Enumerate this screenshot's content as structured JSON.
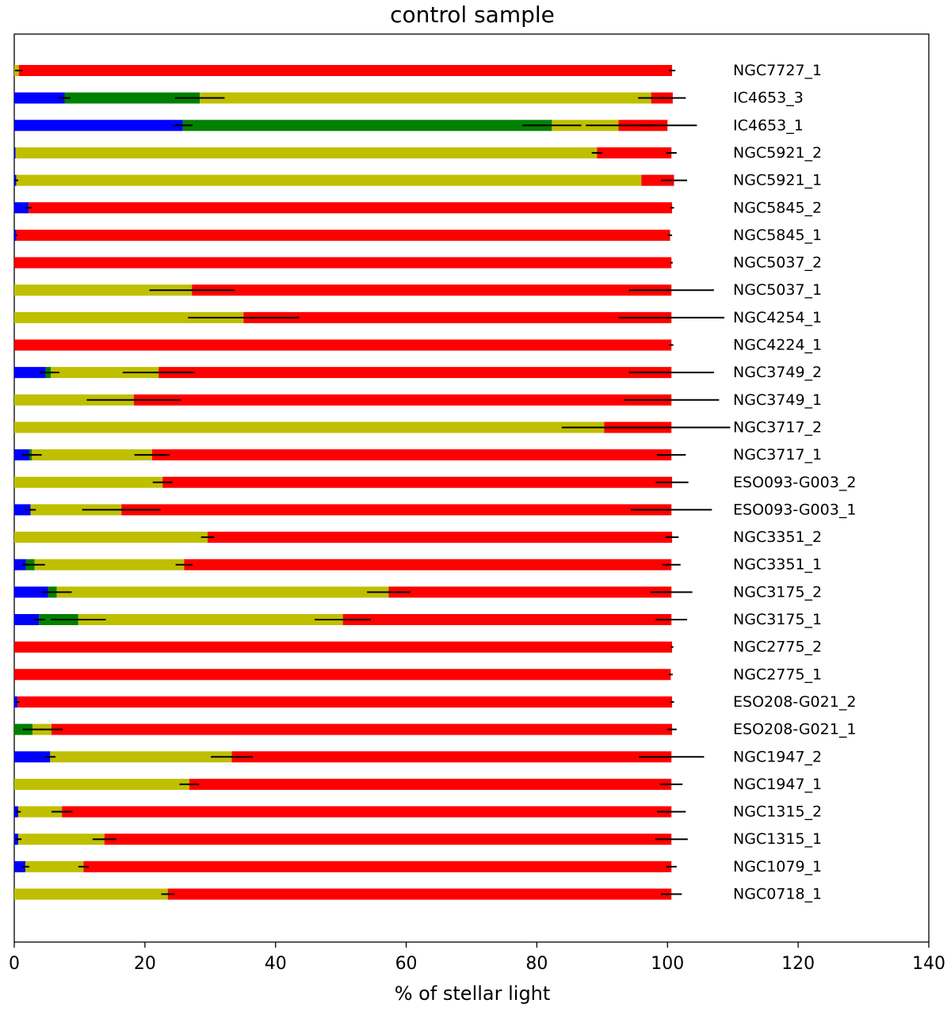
{
  "chart_data": {
    "type": "bar",
    "orientation": "horizontal",
    "stacked": true,
    "title": "control sample",
    "xlabel": "% of stellar light",
    "ylabel": "",
    "xlim": [
      0,
      140
    ],
    "x_ticks": [
      "0",
      "20",
      "40",
      "60",
      "80",
      "100",
      "120",
      "140"
    ],
    "grid": false,
    "legend": "none",
    "categories": [
      "NGC7727_1",
      "IC4653_3",
      "IC4653_1",
      "NGC5921_2",
      "NGC5921_1",
      "NGC5845_2",
      "NGC5845_1",
      "NGC5037_2",
      "NGC5037_1",
      "NGC4254_1",
      "NGC4224_1",
      "NGC3749_2",
      "NGC3749_1",
      "NGC3717_2",
      "NGC3717_1",
      "ESO093-G003_2",
      "ESO093-G003_1",
      "NGC3351_2",
      "NGC3351_1",
      "NGC3175_2",
      "NGC3175_1",
      "NGC2775_2",
      "NGC2775_1",
      "ESO208-G021_2",
      "ESO208-G021_1",
      "NGC1947_2",
      "NGC1947_1",
      "NGC1315_2",
      "NGC1315_1",
      "NGC1079_1",
      "NGC0718_1"
    ],
    "series": [
      {
        "color": "#0000ff",
        "values": [
          0,
          7.7,
          25.8,
          0.2,
          0.3,
          2.2,
          0.3,
          0,
          0,
          0,
          0,
          4.8,
          0,
          0,
          2.3,
          0,
          2.5,
          0,
          1.8,
          5.2,
          3.8,
          0,
          0,
          0.5,
          0,
          5.5,
          0,
          0.6,
          0.6,
          1.7,
          0
        ],
        "errors": [
          0,
          0.9,
          1.5,
          0,
          0.3,
          0.5,
          0.2,
          0,
          0,
          0,
          0,
          0.9,
          0,
          0,
          0.6,
          0,
          0.8,
          0,
          0.5,
          0.8,
          0.9,
          0,
          0,
          0.3,
          0,
          0.8,
          0,
          0.4,
          0.5,
          0.6,
          0
        ]
      },
      {
        "color": "#008000",
        "values": [
          0,
          20.7,
          56.5,
          0,
          0,
          0,
          0,
          0,
          0,
          0,
          0,
          0.8,
          0,
          0,
          0.4,
          0,
          0,
          0,
          1.3,
          1.3,
          6.0,
          0,
          0,
          0,
          2.8,
          0,
          0,
          0,
          0,
          0,
          0
        ],
        "errors": [
          0,
          3.8,
          4.5,
          0,
          0,
          0,
          0,
          0,
          0,
          0,
          0,
          1.3,
          0,
          0,
          1.5,
          0,
          0,
          0,
          1.6,
          2.3,
          4.2,
          0,
          0,
          0,
          1.5,
          0,
          0,
          0,
          0,
          0,
          0
        ]
      },
      {
        "color": "#bfbf00",
        "values": [
          0.7,
          69.1,
          10.2,
          89.0,
          95.7,
          0,
          0,
          0,
          27.2,
          35.1,
          0,
          16.5,
          18.3,
          90.3,
          18.4,
          22.7,
          13.9,
          29.6,
          22.9,
          50.8,
          40.5,
          0,
          0,
          0,
          2.9,
          27.8,
          26.8,
          6.7,
          13.2,
          8.9,
          23.5
        ],
        "errors": [
          0.6,
          2.0,
          5.0,
          0.8,
          0,
          0,
          0,
          0,
          6.5,
          8.5,
          0,
          5.5,
          7.2,
          6.5,
          2.7,
          1.5,
          6.0,
          1.0,
          1.3,
          3.3,
          4.3,
          0,
          0,
          0,
          1.7,
          3.2,
          1.5,
          1.6,
          1.8,
          0.8,
          1.0
        ]
      },
      {
        "color": "#ff0000",
        "values": [
          100.0,
          3.3,
          7.5,
          11.4,
          5.0,
          98.5,
          100.1,
          100.6,
          73.4,
          65.5,
          100.6,
          78.5,
          82.3,
          10.3,
          79.5,
          78.0,
          84.2,
          71.1,
          74.6,
          43.3,
          50.3,
          100.7,
          100.5,
          100.2,
          95.0,
          67.3,
          73.8,
          93.3,
          86.8,
          90.0,
          77.1
        ],
        "errors": [
          0.5,
          2.0,
          4.5,
          0.8,
          2.0,
          0.3,
          0.3,
          0.2,
          6.5,
          8.1,
          0.3,
          6.5,
          7.3,
          9.0,
          2.2,
          2.5,
          6.2,
          1.0,
          1.4,
          3.2,
          2.4,
          0.2,
          0.3,
          0.3,
          0.7,
          5.0,
          1.7,
          2.2,
          2.5,
          0.8,
          1.6
        ]
      }
    ]
  }
}
